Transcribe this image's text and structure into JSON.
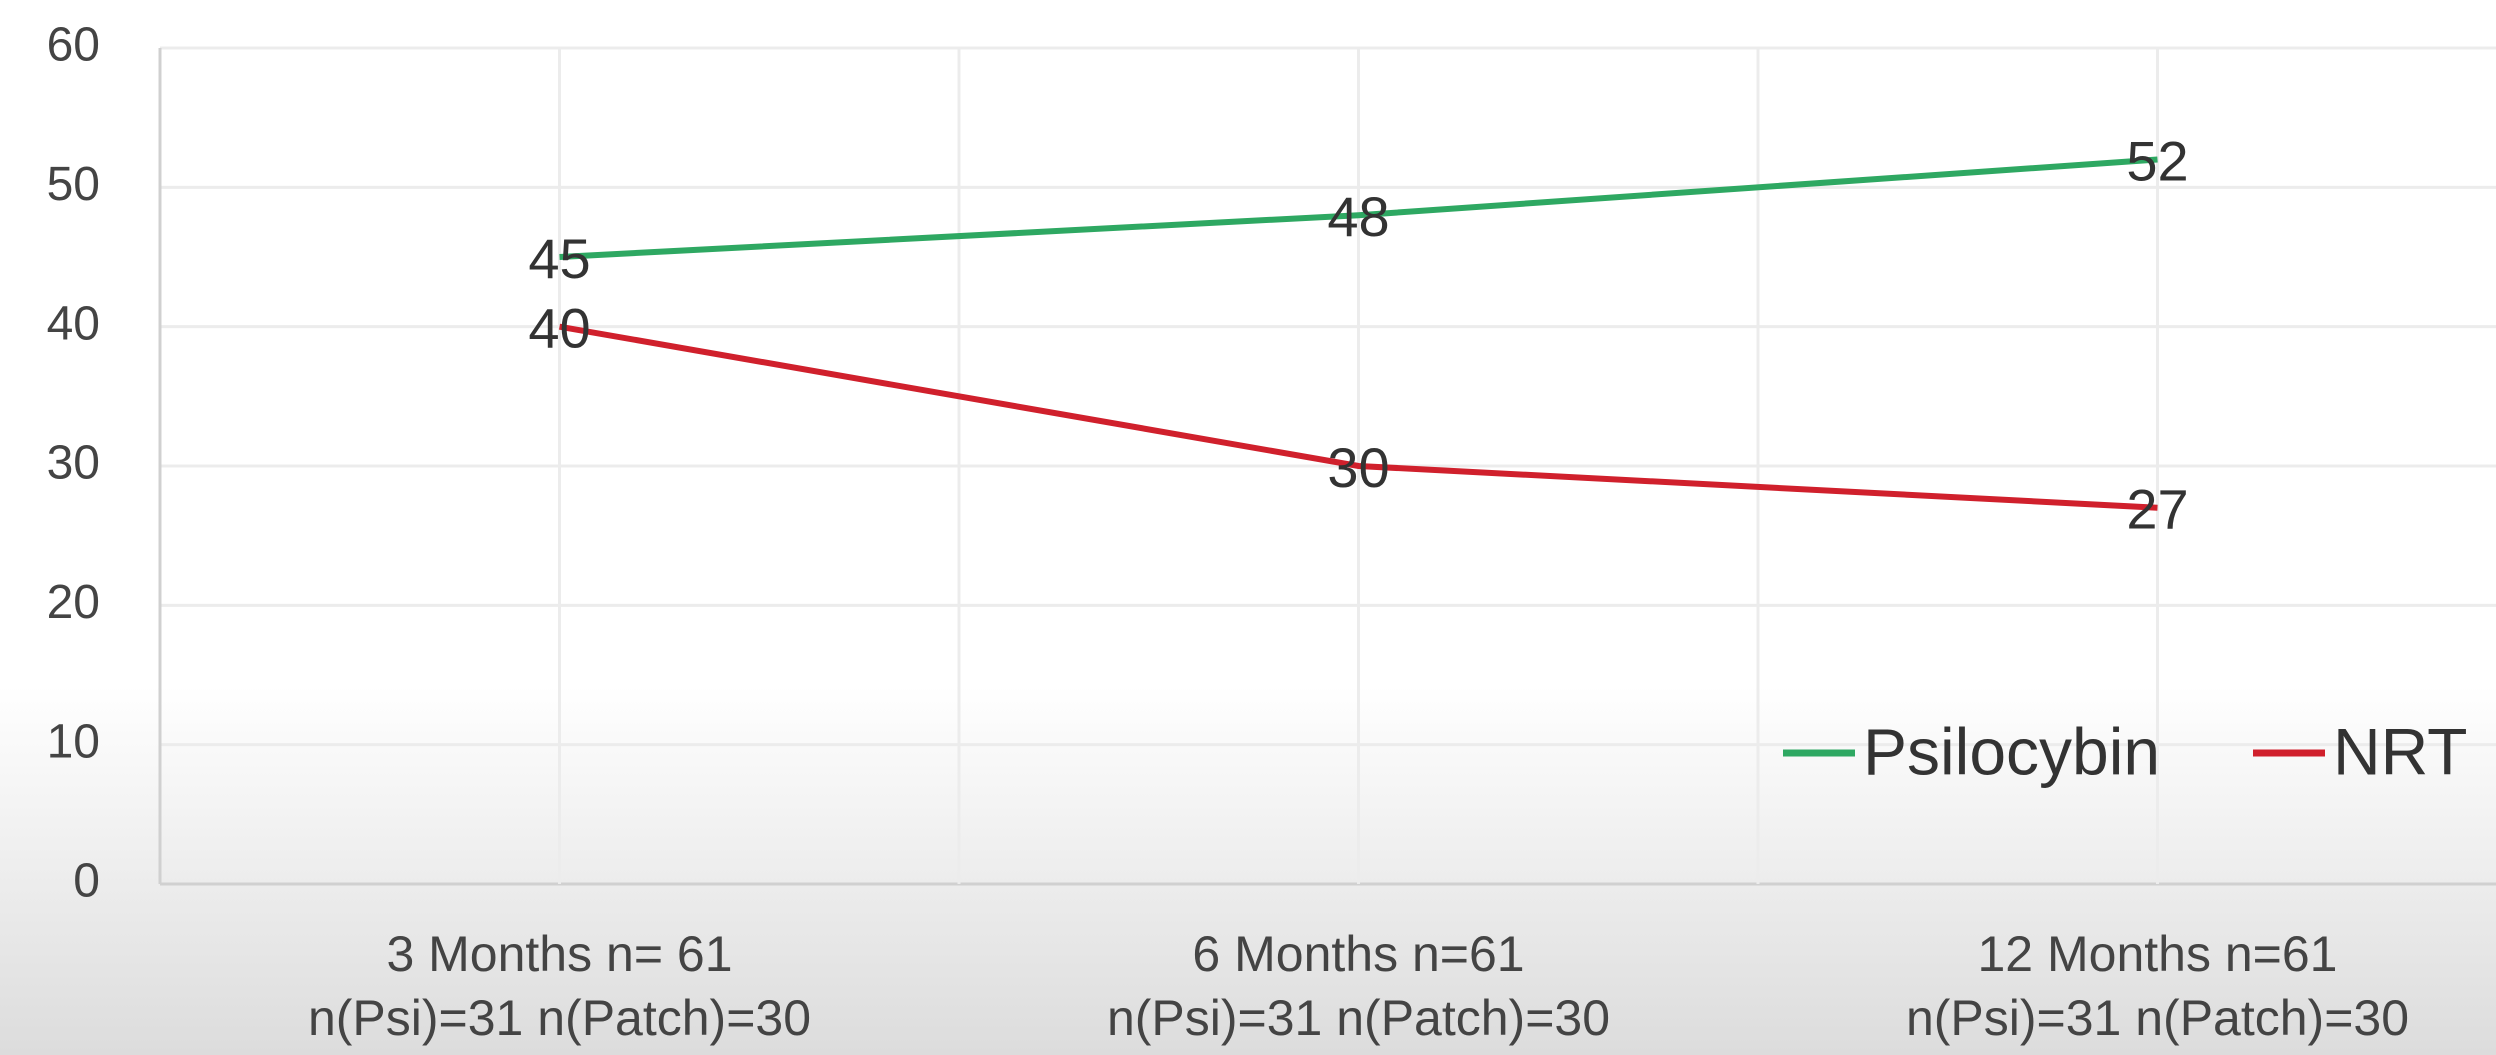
{
  "chart_data": {
    "type": "line",
    "categories": [
      [
        "3 Months n= 61",
        "n(Psi)=31 n(Patch)=30"
      ],
      [
        "6 Months n=61",
        "n(Psi)=31 n(Patch)=30"
      ],
      [
        "12 Months n=61",
        "n(Psi)=31 n(Patch)=30"
      ]
    ],
    "series": [
      {
        "name": "Psilocybin",
        "color": "#2ea862",
        "values": [
          45,
          48,
          52
        ]
      },
      {
        "name": "NRT",
        "color": "#d0202c",
        "values": [
          40,
          30,
          27
        ]
      }
    ],
    "ylim": [
      0,
      60
    ],
    "yticks": [
      0,
      10,
      20,
      30,
      40,
      50,
      60
    ],
    "grid": true,
    "legend": "bottom-right"
  }
}
